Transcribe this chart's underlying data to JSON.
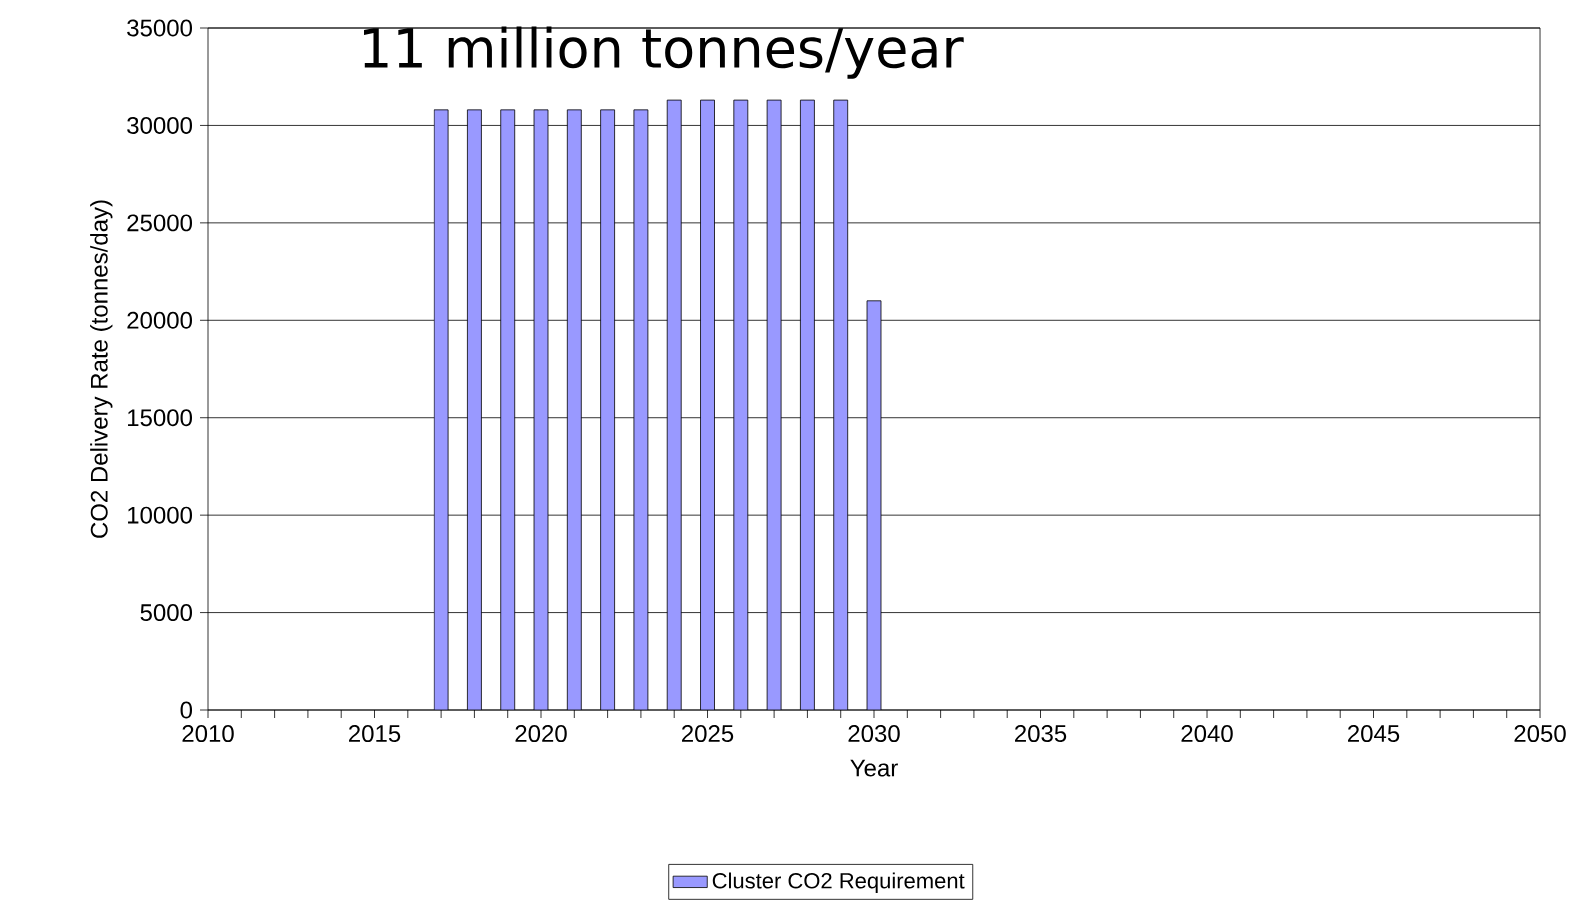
{
  "chart_data": {
    "type": "bar",
    "title": "11 million tonnes/year",
    "xlabel": "Year",
    "ylabel": "CO2 Delivery Rate (tonnes/day)",
    "x": [
      2017,
      2018,
      2019,
      2020,
      2021,
      2022,
      2023,
      2024,
      2025,
      2026,
      2027,
      2028,
      2029,
      2030
    ],
    "series": [
      {
        "name": "Cluster CO2 Requirement",
        "color": "#9999ff",
        "values": [
          30800,
          30800,
          30800,
          30800,
          30800,
          30800,
          30800,
          31300,
          31300,
          31300,
          31300,
          31300,
          31300,
          21000
        ]
      }
    ],
    "xlim": [
      2010,
      2050
    ],
    "xticks": [
      2010,
      2015,
      2020,
      2025,
      2030,
      2035,
      2040,
      2045,
      2050
    ],
    "ylim": [
      0,
      35000
    ],
    "yticks": [
      0,
      5000,
      10000,
      15000,
      20000,
      25000,
      30000,
      35000
    ],
    "grid": "y",
    "legend": "bottom"
  }
}
